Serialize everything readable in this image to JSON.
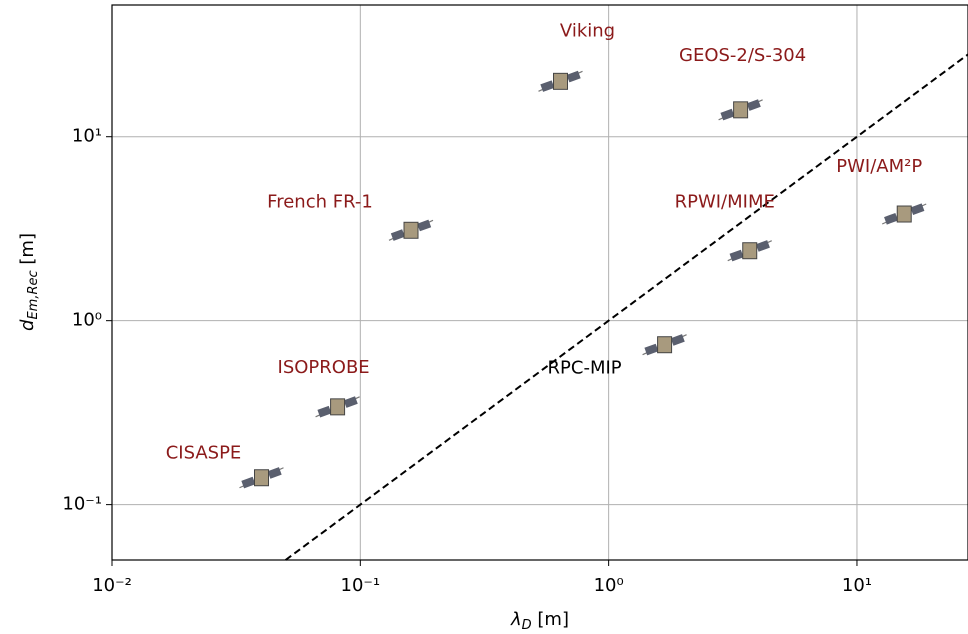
{
  "chart_data": {
    "type": "scatter",
    "xlabel": {
      "symbol": "λ",
      "subscript": "D",
      "unit": "[m]"
    },
    "ylabel": {
      "symbol": "d",
      "subscript": "Em,Rec",
      "unit": "[m]"
    },
    "xscale": "log",
    "yscale": "log",
    "grid": true,
    "xlim": [
      0.01,
      28
    ],
    "ylim": [
      0.05,
      52
    ],
    "xticks": [
      {
        "value": 0.01,
        "label": "10⁻²"
      },
      {
        "value": 0.1,
        "label": "10⁻¹"
      },
      {
        "value": 1,
        "label": "10⁰"
      },
      {
        "value": 10,
        "label": "10¹"
      }
    ],
    "yticks": [
      {
        "value": 0.1,
        "label": "10⁻¹"
      },
      {
        "value": 1,
        "label": "10⁰"
      },
      {
        "value": 10,
        "label": "10¹"
      }
    ],
    "points": [
      {
        "name": "CISASPE",
        "x": 0.04,
        "y": 0.14,
        "color": "#8b1a1a"
      },
      {
        "name": "ISOPROBE",
        "x": 0.081,
        "y": 0.34,
        "color": "#8b1a1a"
      },
      {
        "name": "French FR-1",
        "x": 0.16,
        "y": 3.1,
        "color": "#8b1a1a"
      },
      {
        "name": "Viking",
        "x": 0.64,
        "y": 20,
        "color": "#8b1a1a"
      },
      {
        "name": "GEOS-2/S-304",
        "x": 3.4,
        "y": 14,
        "color": "#8b1a1a"
      },
      {
        "name": "RPWI/MIME",
        "x": 3.7,
        "y": 2.4,
        "color": "#8b1a1a"
      },
      {
        "name": "PWI/AM²P",
        "x": 15.5,
        "y": 3.8,
        "color": "#8b1a1a"
      },
      {
        "name": "RPC-MIP",
        "x": 1.68,
        "y": 0.74,
        "color": "#000000"
      }
    ],
    "reference_line": {
      "x": [
        0.05,
        28
      ],
      "y": [
        0.05,
        28
      ],
      "color": "#000000",
      "style": "dashed"
    }
  }
}
